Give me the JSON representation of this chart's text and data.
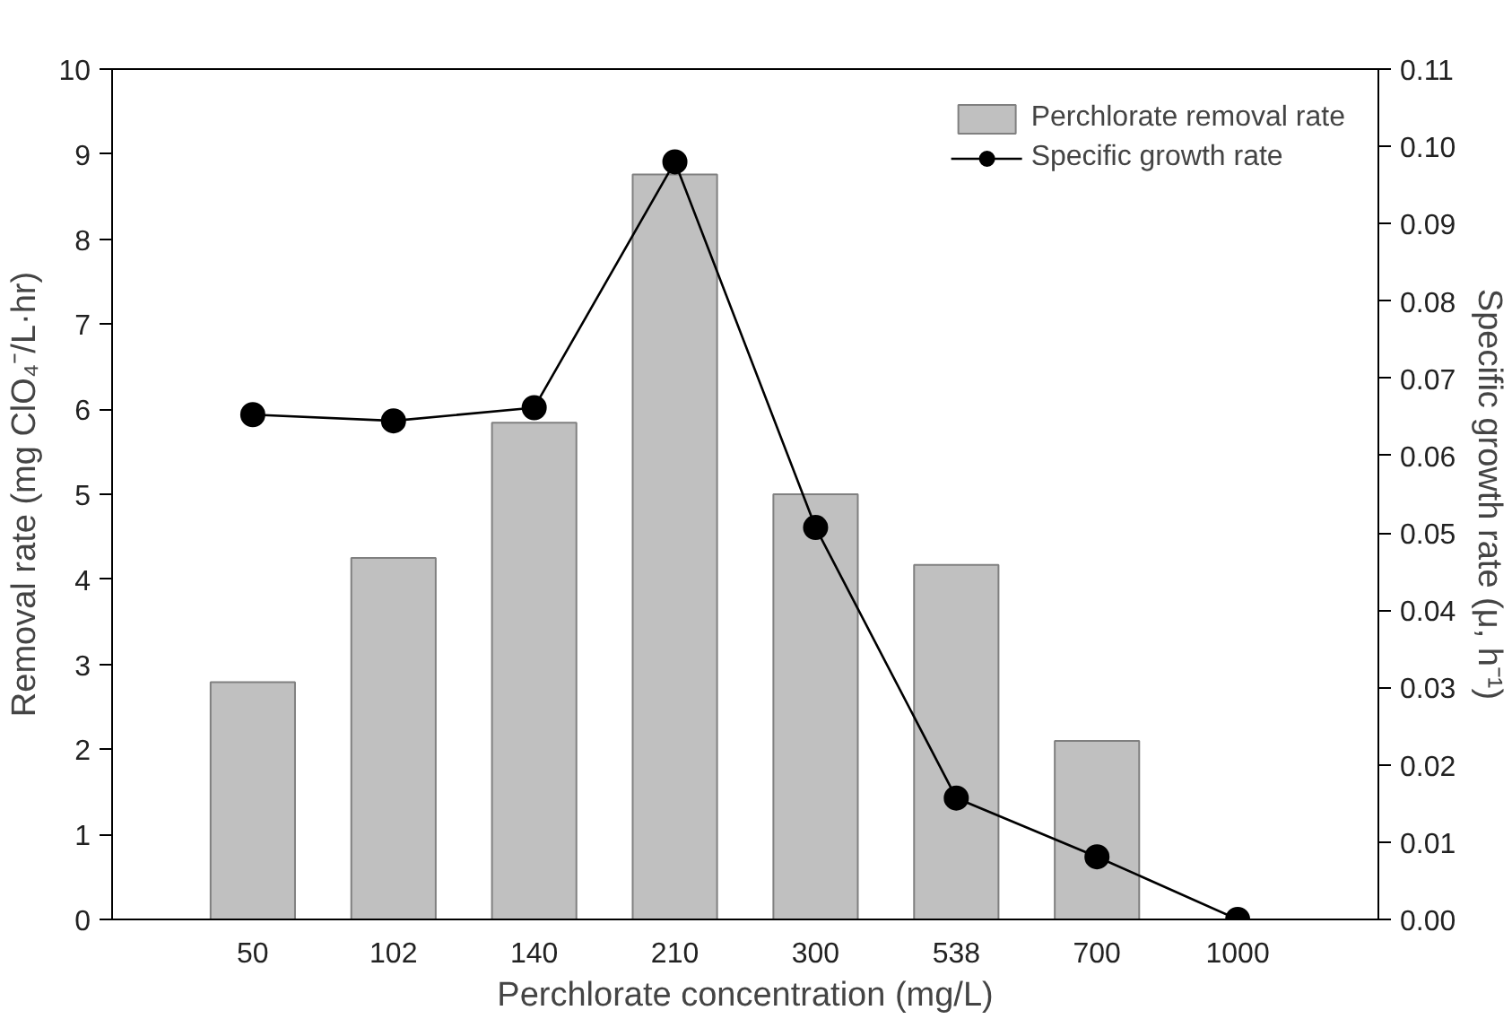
{
  "chart_data": {
    "type": "bar",
    "xlabel": "Perchlorate concentration (mg/L)",
    "ylabel": "Removal rate (mg ClO₄⁻/L·hr)",
    "y2label": "Specific growth rate (μ, h⁻¹)",
    "categories": [
      "50",
      "102",
      "140",
      "210",
      "300",
      "538",
      "700",
      "1000"
    ],
    "series": [
      {
        "name": "Perchlorate removal rate",
        "color": "#c0c0c0",
        "values": [
          2.79,
          4.25,
          5.84,
          8.76,
          5.0,
          4.17,
          2.1,
          null
        ]
      },
      {
        "name": "Specific growth rate",
        "type": "line",
        "axis": "y2",
        "color": "#000000",
        "marker": "circle",
        "values": [
          0.0653,
          0.0645,
          0.0662,
          0.098,
          0.0507,
          0.0157,
          0.0081,
          0.0
        ]
      }
    ],
    "ylim": [
      0,
      10
    ],
    "yticks": [
      0,
      1,
      2,
      3,
      4,
      5,
      6,
      7,
      8,
      9,
      10
    ],
    "y2lim": [
      0,
      0.11
    ],
    "y2ticks": [
      {
        "value": 0,
        "label": "0.00"
      },
      {
        "value": 0.01,
        "label": "0.01"
      },
      {
        "value": 0.02,
        "label": "0.02"
      },
      {
        "value": 0.03,
        "label": "0.03"
      },
      {
        "value": 0.04,
        "label": "0.04"
      },
      {
        "value": 0.05,
        "label": "0.05"
      },
      {
        "value": 0.06,
        "label": "0.06"
      },
      {
        "value": 0.07,
        "label": "0.07"
      },
      {
        "value": 0.08,
        "label": "0.08"
      },
      {
        "value": 0.09,
        "label": "0.09"
      },
      {
        "value": 0.1,
        "label": "0.10"
      },
      {
        "value": 0.11,
        "label": "0.11"
      }
    ],
    "grid": false,
    "legend": "top right"
  }
}
